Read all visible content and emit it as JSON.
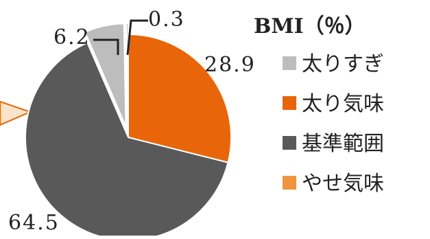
{
  "chart_data": {
    "type": "pie",
    "legend_title": "BMI（％）",
    "legend_position": "right",
    "slices": [
      {
        "name": "太りすぎ",
        "value": 6.2,
        "value_label": "6.2",
        "color": "#BDBDBD",
        "exploded": true
      },
      {
        "name": "太り気味",
        "value": 28.9,
        "value_label": "28.9",
        "color": "#E8650A",
        "exploded": false
      },
      {
        "name": "基準範囲",
        "value": 64.5,
        "value_label": "64.5",
        "color": "#595959",
        "exploded": false
      },
      {
        "name": "やせ気味",
        "value": 0.3,
        "value_label": "0.3",
        "color": "#F0953E",
        "exploded": true
      }
    ]
  }
}
